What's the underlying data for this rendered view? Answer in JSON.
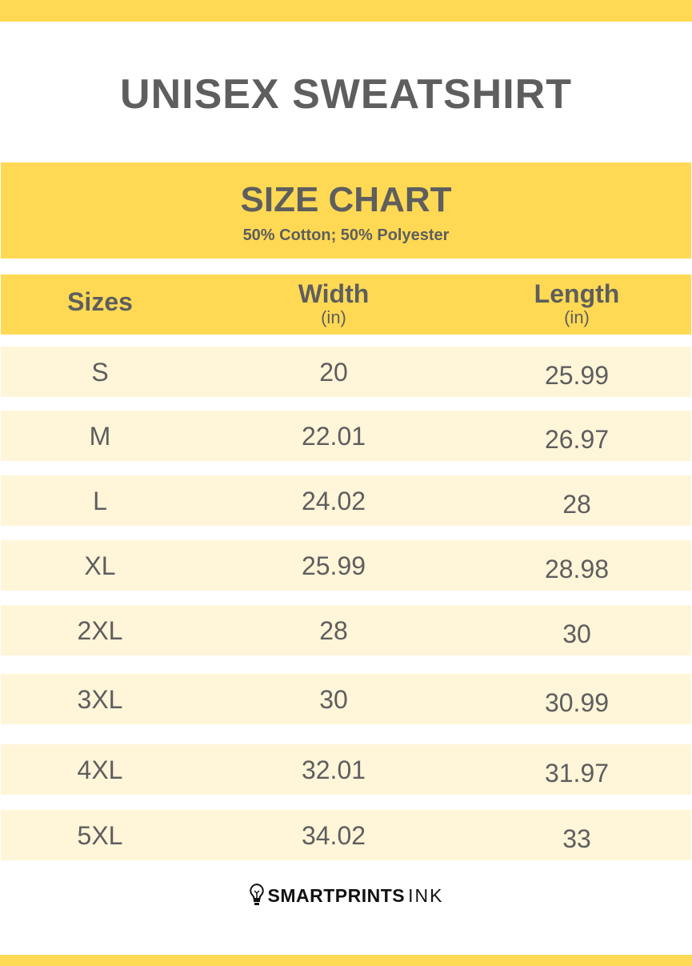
{
  "title": "UNISEX SWEATSHIRT",
  "chart_heading": "SIZE CHART",
  "material": "50% Cotton; 50% Polyester",
  "columns": [
    {
      "label": "Sizes",
      "unit": ""
    },
    {
      "label": "Width",
      "unit": "(in)"
    },
    {
      "label": "Length",
      "unit": "(in)"
    }
  ],
  "rows": [
    [
      "S",
      "20",
      "25.99"
    ],
    [
      "M",
      "22.01",
      "26.97"
    ],
    [
      "L",
      "24.02",
      "28"
    ],
    [
      "XL",
      "25.99",
      "28.98"
    ],
    [
      "2XL",
      "28",
      "30"
    ],
    [
      "3XL",
      "30",
      "30.99"
    ],
    [
      "4XL",
      "32.01",
      "31.97"
    ],
    [
      "5XL",
      "34.02",
      "33"
    ]
  ],
  "logo": {
    "bold": "SMARTPRINTS",
    "thin": "INK",
    "icon": "lightbulb-icon"
  },
  "colors": {
    "accent": "#FFD954",
    "row_bg": "#FFF5D9",
    "text": "#5e5e5e"
  }
}
